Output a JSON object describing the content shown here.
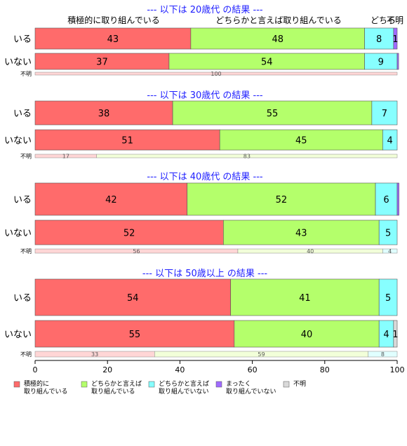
{
  "chart_data": {
    "type": "bar",
    "orientation": "horizontal",
    "stacked": true,
    "xlim": [
      0,
      100
    ],
    "x_ticks": [
      "0",
      "20",
      "40",
      "60",
      "80",
      "100"
    ],
    "top_category_labels": [
      "積極的に取り組んでいる",
      "どちらかと言えば取り組んでいる",
      "どちら",
      "不明"
    ],
    "series": [
      {
        "key": "s1",
        "name": "積極的に\n取り組んでいる",
        "color": "#ff6b6b",
        "light": "#ffd6d6"
      },
      {
        "key": "s2",
        "name": "どちらかと言えば\n取り組んでいる",
        "color": "#b4ff6b",
        "light": "#f2ffd9"
      },
      {
        "key": "s3",
        "name": "どちらかと言えば\n取り組んでいない",
        "color": "#87ffff",
        "light": "#e0ffff"
      },
      {
        "key": "s4",
        "name": "まったく\n取り組んでいない",
        "color": "#a06bff",
        "light": "#e6d9ff"
      },
      {
        "key": "s5",
        "name": "不明",
        "color": "#d9d9d9",
        "light": "#f0f0f0"
      }
    ],
    "groups": [
      {
        "title": "--- 以下は 20歳代 の結果 ---",
        "rows": [
          {
            "label": "いる",
            "values": [
              43,
              48,
              8,
              1,
              0
            ],
            "labels": [
              "43",
              "48",
              "8",
              "1",
              ""
            ]
          },
          {
            "label": "いない",
            "values": [
              37,
              54,
              9,
              0.4,
              0
            ],
            "labels": [
              "37",
              "54",
              "9",
              "",
              ""
            ]
          }
        ],
        "unknown": {
          "label": "不明",
          "values": [
            100,
            0,
            0,
            0,
            0
          ],
          "labels": [
            "100",
            "",
            "",
            "",
            ""
          ]
        }
      },
      {
        "title": "--- 以下は 30歳代 の結果 ---",
        "rows": [
          {
            "label": "いる",
            "values": [
              38,
              55,
              7,
              0,
              0
            ],
            "labels": [
              "38",
              "55",
              "7",
              "",
              ""
            ]
          },
          {
            "label": "いない",
            "values": [
              51,
              45,
              4,
              0,
              0
            ],
            "labels": [
              "51",
              "45",
              "4",
              "",
              ""
            ]
          }
        ],
        "unknown": {
          "label": "不明",
          "values": [
            17,
            83,
            0,
            0,
            0
          ],
          "labels": [
            "17",
            "83",
            "",
            "",
            ""
          ]
        }
      },
      {
        "title": "--- 以下は 40歳代 の結果 ---",
        "rows": [
          {
            "label": "いる",
            "values": [
              42,
              52,
              6,
              0.5,
              0
            ],
            "labels": [
              "42",
              "52",
              "6",
              "",
              ""
            ]
          },
          {
            "label": "いない",
            "values": [
              52,
              43,
              5,
              0,
              0
            ],
            "labels": [
              "52",
              "43",
              "5",
              "",
              ""
            ]
          }
        ],
        "unknown": {
          "label": "不明",
          "values": [
            56,
            40,
            4,
            0,
            0
          ],
          "labels": [
            "56",
            "40",
            "4",
            "",
            ""
          ]
        }
      },
      {
        "title": "--- 以下は 50歳以上 の結果 ---",
        "rows": [
          {
            "label": "いる",
            "values": [
              54,
              41,
              5,
              0,
              0
            ],
            "labels": [
              "54",
              "41",
              "5",
              "",
              ""
            ]
          },
          {
            "label": "いない",
            "values": [
              55,
              40,
              4,
              0,
              1
            ],
            "labels": [
              "55",
              "40",
              "4",
              "",
              "1"
            ]
          }
        ],
        "unknown": {
          "label": "不明",
          "values": [
            33,
            59,
            8,
            0,
            0
          ],
          "labels": [
            "33",
            "59",
            "8",
            "",
            ""
          ]
        }
      }
    ]
  }
}
